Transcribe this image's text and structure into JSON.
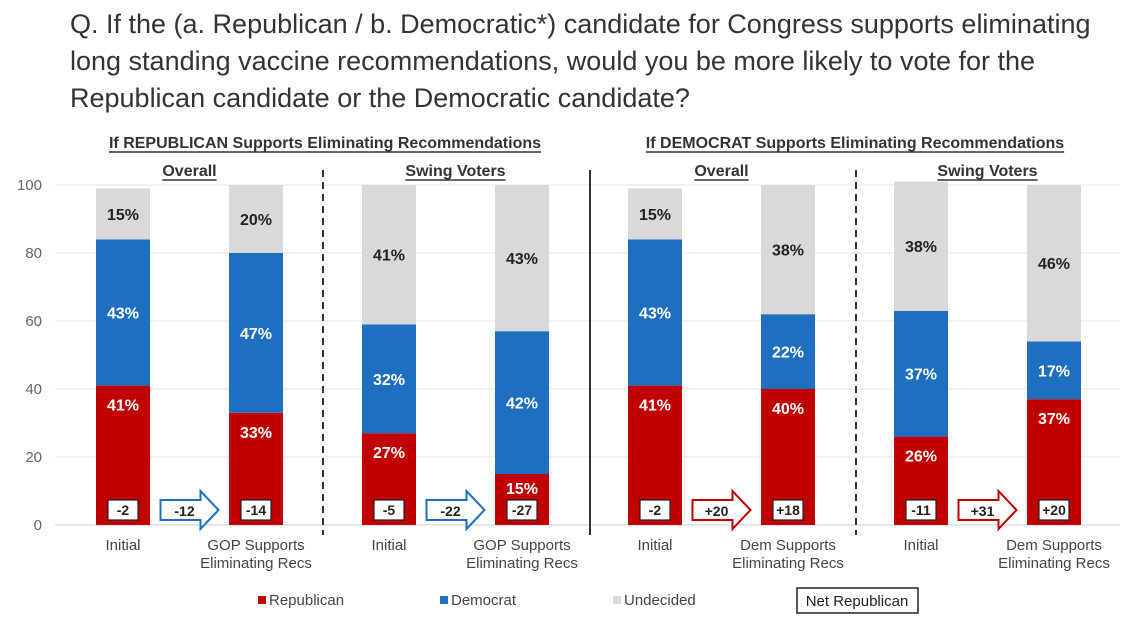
{
  "question": "Q. If the (a. Republican / b. Democratic*) candidate for Congress supports eliminating long standing vaccine recommendations, would you be more likely to vote for the Republican candidate or the Democratic candidate?",
  "colors": {
    "republican": "#c00000",
    "democrat": "#1f6fc0",
    "undecided": "#d9d9d9",
    "grid": "#e6e6e6",
    "text": "#333333"
  },
  "chart_data": {
    "type": "bar",
    "stacked": true,
    "ylim": [
      0,
      100
    ],
    "yticks": [
      "0",
      "20",
      "40",
      "60",
      "80",
      "100"
    ],
    "grid": true,
    "legend_position": "bottom",
    "legend": [
      "Republican",
      "Democrat",
      "Undecided",
      "Net Republican"
    ],
    "sections": [
      {
        "title": "If REPUBLICAN Supports Eliminating Recommendations"
      },
      {
        "title": "If DEMOCRAT Supports Eliminating Recommendations"
      }
    ],
    "panels": [
      {
        "title": "Overall",
        "section": 0,
        "shift": "-12",
        "shift_color": "democrat",
        "bars": [
          {
            "category": [
              "Initial"
            ],
            "republican": 41,
            "democrat": 43,
            "undecided": 15,
            "rep_label": "41%",
            "dem_label": "43%",
            "und_label": "15%",
            "net": "-2"
          },
          {
            "category": [
              "GOP Supports",
              "Eliminating Recs"
            ],
            "republican": 33,
            "democrat": 47,
            "undecided": 20,
            "rep_label": "33%",
            "dem_label": "47%",
            "und_label": "20%",
            "net": "-14"
          }
        ]
      },
      {
        "title": "Swing Voters",
        "section": 0,
        "shift": "-22",
        "shift_color": "democrat",
        "bars": [
          {
            "category": [
              "Initial"
            ],
            "republican": 27,
            "democrat": 32,
            "undecided": 41,
            "rep_label": "27%",
            "dem_label": "32%",
            "und_label": "41%",
            "net": "-5"
          },
          {
            "category": [
              "GOP Supports",
              "Eliminating Recs"
            ],
            "republican": 15,
            "democrat": 42,
            "undecided": 43,
            "rep_label": "15%",
            "dem_label": "42%",
            "und_label": "43%",
            "net": "-27"
          }
        ]
      },
      {
        "title": "Overall",
        "section": 1,
        "shift": "+20",
        "shift_color": "republican",
        "bars": [
          {
            "category": [
              "Initial"
            ],
            "republican": 41,
            "democrat": 43,
            "undecided": 15,
            "rep_label": "41%",
            "dem_label": "43%",
            "und_label": "15%",
            "net": "-2"
          },
          {
            "category": [
              "Dem Supports",
              "Eliminating Recs"
            ],
            "republican": 40,
            "democrat": 22,
            "undecided": 38,
            "rep_label": "40%",
            "dem_label": "22%",
            "und_label": "38%",
            "net": "+18"
          }
        ]
      },
      {
        "title": "Swing Voters",
        "section": 1,
        "shift": "+31",
        "shift_color": "republican",
        "bars": [
          {
            "category": [
              "Initial"
            ],
            "republican": 26,
            "democrat": 37,
            "undecided": 38,
            "rep_label": "26%",
            "dem_label": "37%",
            "und_label": "38%",
            "net": "-11"
          },
          {
            "category": [
              "Dem Supports",
              "Eliminating Recs"
            ],
            "republican": 37,
            "democrat": 17,
            "undecided": 46,
            "rep_label": "37%",
            "dem_label": "17%",
            "und_label": "46%",
            "net": "+20"
          }
        ]
      }
    ]
  }
}
